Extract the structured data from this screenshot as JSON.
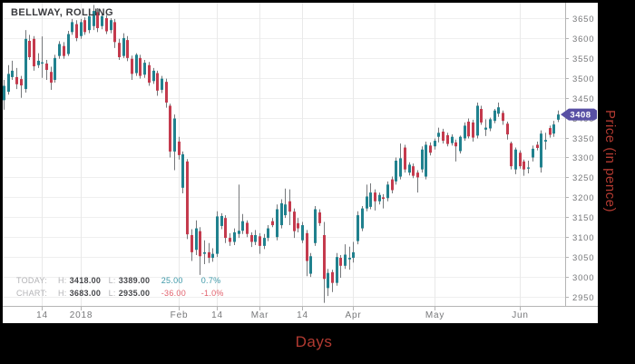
{
  "title": "BELLWAY, ROLLING",
  "status": {
    "rows": [
      {
        "label": "TODAY:",
        "h_label": "H:",
        "high": "3418.00",
        "l_label": "L:",
        "low": "3389.00",
        "change": "25.00",
        "change_pct": "0.7%",
        "positive": true
      },
      {
        "label": "CHART:",
        "h_label": "H:",
        "high": "3683.00",
        "l_label": "L:",
        "low": "2935.00",
        "change": "-36.00",
        "change_pct": "-1.0%",
        "positive": false
      }
    ]
  },
  "axes": {
    "x_title": "Days",
    "y_title": "Price (in pence)"
  },
  "price_badge": {
    "value": "3408"
  },
  "colors": {
    "up_candle": "#20818e",
    "down_candle": "#c43a4d",
    "wick": "#76787b",
    "h_grid": "#efefef",
    "v_grid": "#e9e9e9",
    "axis_line": "#b5b5b5",
    "tick_text": "#77787a",
    "badge_bg": "#584fa4",
    "badge_text": "#ffffff",
    "panel_bg": "#ffffff",
    "frame_bg": "#000000",
    "title_text": "#393a3e",
    "status_label": "#b3b3b6",
    "status_value": "#47484c",
    "positive": "#3d98a8",
    "negative": "#e2606c",
    "axis_title_text": "#b23a31"
  },
  "chart_data": {
    "type": "candlestick",
    "title": "BELLWAY, ROLLING",
    "xlabel": "Days",
    "ylabel": "Price (in pence)",
    "last_close": 3408,
    "period_high": 3683,
    "period_low": 2935,
    "y_ticks": [
      3650,
      3600,
      3550,
      3500,
      3450,
      3400,
      3350,
      3300,
      3250,
      3200,
      3150,
      3100,
      3050,
      3000,
      2950
    ],
    "x_ticks": [
      {
        "label": "14",
        "index": 9
      },
      {
        "label": "2018",
        "index": 18
      },
      {
        "label": "Feb",
        "index": 41
      },
      {
        "label": "14",
        "index": 50
      },
      {
        "label": "Mar",
        "index": 60
      },
      {
        "label": "14",
        "index": 70
      },
      {
        "label": "Apr",
        "index": 82
      },
      {
        "label": "May",
        "index": 101
      },
      {
        "label": "Jun",
        "index": 121
      }
    ],
    "candles_format": [
      "open",
      "high",
      "low",
      "close"
    ],
    "candles": [
      [
        3444,
        3495,
        3420,
        3480
      ],
      [
        3465,
        3532,
        3458,
        3510
      ],
      [
        3502,
        3543,
        3495,
        3518
      ],
      [
        3502,
        3525,
        3472,
        3484
      ],
      [
        3497,
        3505,
        3450,
        3481
      ],
      [
        3472,
        3620,
        3463,
        3598
      ],
      [
        3593,
        3608,
        3545,
        3552
      ],
      [
        3598,
        3605,
        3518,
        3529
      ],
      [
        3532,
        3562,
        3525,
        3543
      ],
      [
        3536,
        3604,
        3500,
        3539
      ],
      [
        3536,
        3545,
        3495,
        3520
      ],
      [
        3515,
        3528,
        3470,
        3488
      ],
      [
        3495,
        3558,
        3488,
        3550
      ],
      [
        3555,
        3592,
        3548,
        3585
      ],
      [
        3580,
        3590,
        3548,
        3555
      ],
      [
        3560,
        3618,
        3555,
        3610
      ],
      [
        3615,
        3648,
        3608,
        3640
      ],
      [
        3635,
        3645,
        3592,
        3600
      ],
      [
        3605,
        3648,
        3598,
        3640
      ],
      [
        3645,
        3652,
        3608,
        3615
      ],
      [
        3620,
        3660,
        3612,
        3655
      ],
      [
        3630,
        3683,
        3620,
        3668
      ],
      [
        3665,
        3675,
        3615,
        3625
      ],
      [
        3630,
        3662,
        3622,
        3655
      ],
      [
        3650,
        3658,
        3610,
        3617
      ],
      [
        3620,
        3650,
        3612,
        3645
      ],
      [
        3640,
        3648,
        3575,
        3590
      ],
      [
        3588,
        3598,
        3545,
        3552
      ],
      [
        3555,
        3612,
        3550,
        3600
      ],
      [
        3595,
        3605,
        3542,
        3550
      ],
      [
        3548,
        3556,
        3495,
        3510
      ],
      [
        3512,
        3562,
        3505,
        3558
      ],
      [
        3550,
        3558,
        3498,
        3505
      ],
      [
        3508,
        3545,
        3500,
        3538
      ],
      [
        3532,
        3540,
        3480,
        3488
      ],
      [
        3492,
        3525,
        3485,
        3518
      ],
      [
        3512,
        3518,
        3455,
        3468
      ],
      [
        3470,
        3505,
        3462,
        3498
      ],
      [
        3490,
        3498,
        3425,
        3438
      ],
      [
        3430,
        3435,
        3300,
        3315
      ],
      [
        3315,
        3408,
        3268,
        3398
      ],
      [
        3340,
        3352,
        3295,
        3306
      ],
      [
        3224,
        3315,
        3210,
        3308
      ],
      [
        3290,
        3296,
        3095,
        3107
      ],
      [
        3105,
        3120,
        3040,
        3062
      ],
      [
        3068,
        3142,
        3055,
        3122
      ],
      [
        3115,
        3125,
        3005,
        3052
      ],
      [
        3058,
        3092,
        3032,
        3062
      ],
      [
        3062,
        3085,
        3035,
        3048
      ],
      [
        3048,
        3072,
        3038,
        3058
      ],
      [
        3058,
        3165,
        3050,
        3152
      ],
      [
        3128,
        3160,
        3120,
        3153
      ],
      [
        3148,
        3155,
        3085,
        3098
      ],
      [
        3098,
        3110,
        3078,
        3088
      ],
      [
        3088,
        3122,
        3080,
        3112
      ],
      [
        3108,
        3232,
        3098,
        3116
      ],
      [
        3116,
        3158,
        3108,
        3140
      ],
      [
        3136,
        3142,
        3100,
        3108
      ],
      [
        3105,
        3112,
        3075,
        3088
      ],
      [
        3088,
        3118,
        3080,
        3105
      ],
      [
        3102,
        3110,
        3058,
        3078
      ],
      [
        3078,
        3108,
        3070,
        3098
      ],
      [
        3098,
        3130,
        3090,
        3122
      ],
      [
        3140,
        3148,
        3125,
        3130
      ],
      [
        3100,
        3182,
        3092,
        3170
      ],
      [
        3130,
        3195,
        3122,
        3185
      ],
      [
        3155,
        3222,
        3148,
        3182
      ],
      [
        3190,
        3220,
        3130,
        3164
      ],
      [
        3164,
        3172,
        3098,
        3115
      ],
      [
        3135,
        3148,
        3112,
        3122
      ],
      [
        3092,
        3138,
        3085,
        3130
      ],
      [
        3110,
        3118,
        3002,
        3040
      ],
      [
        3008,
        3060,
        3000,
        3052
      ],
      [
        3085,
        3178,
        3078,
        3170
      ],
      [
        3162,
        3170,
        3128,
        3135
      ],
      [
        3105,
        3138,
        2935,
        2995
      ],
      [
        2972,
        3020,
        2952,
        3010
      ],
      [
        3012,
        3018,
        2962,
        2985
      ],
      [
        2985,
        3060,
        2978,
        3050
      ],
      [
        3048,
        3055,
        2998,
        3028
      ],
      [
        3028,
        3082,
        3020,
        3056
      ],
      [
        3044,
        3076,
        3018,
        3048
      ],
      [
        3048,
        3088,
        3036,
        3062
      ],
      [
        3090,
        3165,
        3082,
        3155
      ],
      [
        3122,
        3178,
        3115,
        3172
      ],
      [
        3172,
        3232,
        3165,
        3202
      ],
      [
        3176,
        3235,
        3170,
        3212
      ],
      [
        3212,
        3220,
        3167,
        3190
      ],
      [
        3190,
        3212,
        3182,
        3206
      ],
      [
        3200,
        3208,
        3172,
        3196
      ],
      [
        3198,
        3240,
        3190,
        3232
      ],
      [
        3245,
        3252,
        3210,
        3218
      ],
      [
        3240,
        3300,
        3232,
        3292
      ],
      [
        3252,
        3335,
        3245,
        3298
      ],
      [
        3325,
        3332,
        3262,
        3270
      ],
      [
        3262,
        3288,
        3255,
        3282
      ],
      [
        3278,
        3285,
        3248,
        3254
      ],
      [
        3262,
        3268,
        3212,
        3250
      ],
      [
        3270,
        3328,
        3262,
        3320
      ],
      [
        3252,
        3340,
        3245,
        3332
      ],
      [
        3330,
        3338,
        3305,
        3312
      ],
      [
        3328,
        3348,
        3320,
        3342
      ],
      [
        3352,
        3375,
        3338,
        3362
      ],
      [
        3365,
        3372,
        3335,
        3342
      ],
      [
        3356,
        3362,
        3328,
        3334
      ],
      [
        3336,
        3358,
        3330,
        3352
      ],
      [
        3338,
        3345,
        3290,
        3328
      ],
      [
        3316,
        3355,
        3310,
        3352
      ],
      [
        3348,
        3388,
        3342,
        3380
      ],
      [
        3390,
        3398,
        3348,
        3353
      ],
      [
        3388,
        3395,
        3340,
        3350
      ],
      [
        3355,
        3438,
        3348,
        3430
      ],
      [
        3422,
        3430,
        3382,
        3388
      ],
      [
        3370,
        3396,
        3354,
        3375
      ],
      [
        3373,
        3400,
        3366,
        3396
      ],
      [
        3392,
        3422,
        3386,
        3418
      ],
      [
        3410,
        3438,
        3402,
        3426
      ],
      [
        3412,
        3418,
        3382,
        3392
      ],
      [
        3385,
        3390,
        3345,
        3358
      ],
      [
        3336,
        3340,
        3270,
        3278
      ],
      [
        3270,
        3325,
        3258,
        3320
      ],
      [
        3312,
        3318,
        3272,
        3278
      ],
      [
        3290,
        3295,
        3254,
        3270
      ],
      [
        3272,
        3292,
        3260,
        3275
      ],
      [
        3300,
        3330,
        3290,
        3322
      ],
      [
        3332,
        3340,
        3318,
        3324
      ],
      [
        3275,
        3368,
        3262,
        3360
      ],
      [
        3340,
        3362,
        3320,
        3344
      ],
      [
        3374,
        3380,
        3350,
        3357
      ],
      [
        3360,
        3392,
        3352,
        3383
      ],
      [
        3395,
        3418,
        3389,
        3408
      ]
    ]
  }
}
